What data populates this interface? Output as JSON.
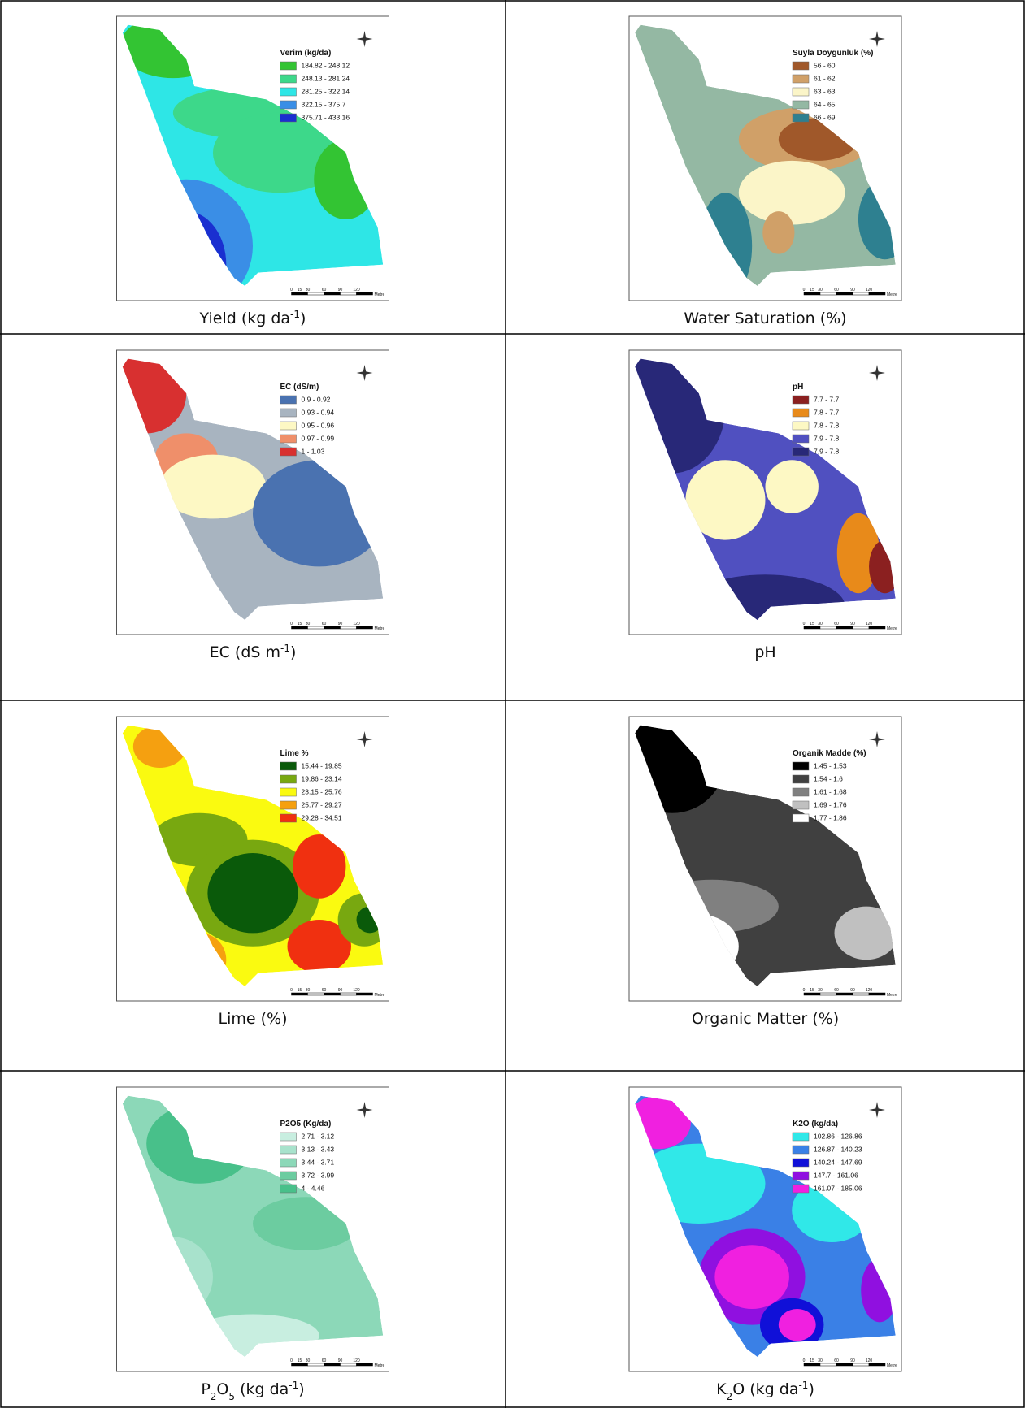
{
  "panels": [
    {
      "caption": [
        {
          "text": "Yield (kg da"
        },
        {
          "text": "-1",
          "style": "sup"
        },
        {
          "text": ")"
        }
      ],
      "legend_title": "Verim (kg/da)",
      "legend": [
        {
          "label": "184.82 - 248.12",
          "color": "#33c433"
        },
        {
          "label": "248.13 - 281.24",
          "color": "#3dd88a"
        },
        {
          "label": "281.25 - 322.14",
          "color": "#2ee6e6"
        },
        {
          "label": "322.15 - 375.7",
          "color": "#3a8ee6"
        },
        {
          "label": "375.71 - 433.16",
          "color": "#1a2fd0"
        }
      ]
    },
    {
      "caption": [
        {
          "text": "Water Saturation (%)"
        }
      ],
      "legend_title": "Suyla Doygunluk (%)",
      "legend": [
        {
          "label": "56 - 60",
          "color": "#a0582a"
        },
        {
          "label": "61 - 62",
          "color": "#d0a068"
        },
        {
          "label": "63 - 63",
          "color": "#fbf5c8"
        },
        {
          "label": "64 - 65",
          "color": "#94b8a3"
        },
        {
          "label": "66 - 69",
          "color": "#2e8090"
        }
      ]
    },
    {
      "caption": [
        {
          "text": "EC (dS m"
        },
        {
          "text": "-1",
          "style": "sup"
        },
        {
          "text": ")"
        }
      ],
      "legend_title": "EC (dS/m)",
      "legend": [
        {
          "label": "0.9 - 0.92",
          "color": "#4a72b0"
        },
        {
          "label": "0.93 - 0.94",
          "color": "#a8b4c0"
        },
        {
          "label": "0.95 - 0.96",
          "color": "#fdf8c4"
        },
        {
          "label": "0.97 - 0.99",
          "color": "#ef8f6a"
        },
        {
          "label": "1 - 1.03",
          "color": "#d83030"
        }
      ]
    },
    {
      "caption": [
        {
          "text": "pH"
        }
      ],
      "legend_title": "pH",
      "legend": [
        {
          "label": "7.7 - 7.7",
          "color": "#8b2020"
        },
        {
          "label": "7.8 - 7.7",
          "color": "#e88a1a"
        },
        {
          "label": "7.8 - 7.8",
          "color": "#fdf8c4"
        },
        {
          "label": "7.9 - 7.8",
          "color": "#5050c0"
        },
        {
          "label": "7.9 - 7.8",
          "color": "#282878"
        }
      ]
    },
    {
      "caption": [
        {
          "text": "Lime (%)"
        }
      ],
      "legend_title": "Lime %",
      "legend": [
        {
          "label": "15.44 - 19.85",
          "color": "#0a5a0a"
        },
        {
          "label": "19.86 - 23.14",
          "color": "#78a810"
        },
        {
          "label": "23.15 - 25.76",
          "color": "#fafa10"
        },
        {
          "label": "25.77 - 29.27",
          "color": "#f5a010"
        },
        {
          "label": "29.28 - 34.51",
          "color": "#f03010"
        }
      ]
    },
    {
      "caption": [
        {
          "text": "Organic Matter (%)"
        }
      ],
      "legend_title": "Organik Madde (%)",
      "legend": [
        {
          "label": "1.45 - 1.53",
          "color": "#000000"
        },
        {
          "label": "1.54 - 1.6",
          "color": "#404040"
        },
        {
          "label": "1.61 - 1.68",
          "color": "#808080"
        },
        {
          "label": "1.69 - 1.76",
          "color": "#c0c0c0"
        },
        {
          "label": "1.77 - 1.86",
          "color": "#ffffff"
        }
      ]
    },
    {
      "caption": [
        {
          "text": "P"
        },
        {
          "text": "2",
          "style": "sub"
        },
        {
          "text": "O"
        },
        {
          "text": "5",
          "style": "sub"
        },
        {
          "text": " (kg da"
        },
        {
          "text": "-1",
          "style": "sup"
        },
        {
          "text": ")"
        }
      ],
      "legend_title": "P2O5 (Kg/da)",
      "legend": [
        {
          "label": "2.71 - 3.12",
          "color": "#c8eee0"
        },
        {
          "label": "3.13 - 3.43",
          "color": "#a8e2cc"
        },
        {
          "label": "3.44 - 3.71",
          "color": "#8cd8b8"
        },
        {
          "label": "3.72 - 3.99",
          "color": "#6ccca0"
        },
        {
          "label": "4 - 4.46",
          "color": "#48c08a"
        }
      ]
    },
    {
      "caption": [
        {
          "text": "K"
        },
        {
          "text": "2",
          "style": "sub"
        },
        {
          "text": "O (kg da"
        },
        {
          "text": "-1",
          "style": "sup"
        },
        {
          "text": ")"
        }
      ],
      "legend_title": "K2O (kg/da)",
      "legend": [
        {
          "label": "102.86 - 126.86",
          "color": "#30e8e8"
        },
        {
          "label": "126.87 - 140.23",
          "color": "#3a80e6"
        },
        {
          "label": "140.24 - 147.69",
          "color": "#1010d8"
        },
        {
          "label": "147.7 - 161.06",
          "color": "#9010e0"
        },
        {
          "label": "161.07 - 185.06",
          "color": "#f020e0"
        }
      ]
    }
  ],
  "scale_bar": {
    "labels": [
      "0",
      "15",
      "30",
      "60",
      "90",
      "120"
    ],
    "unit": "Metre"
  }
}
